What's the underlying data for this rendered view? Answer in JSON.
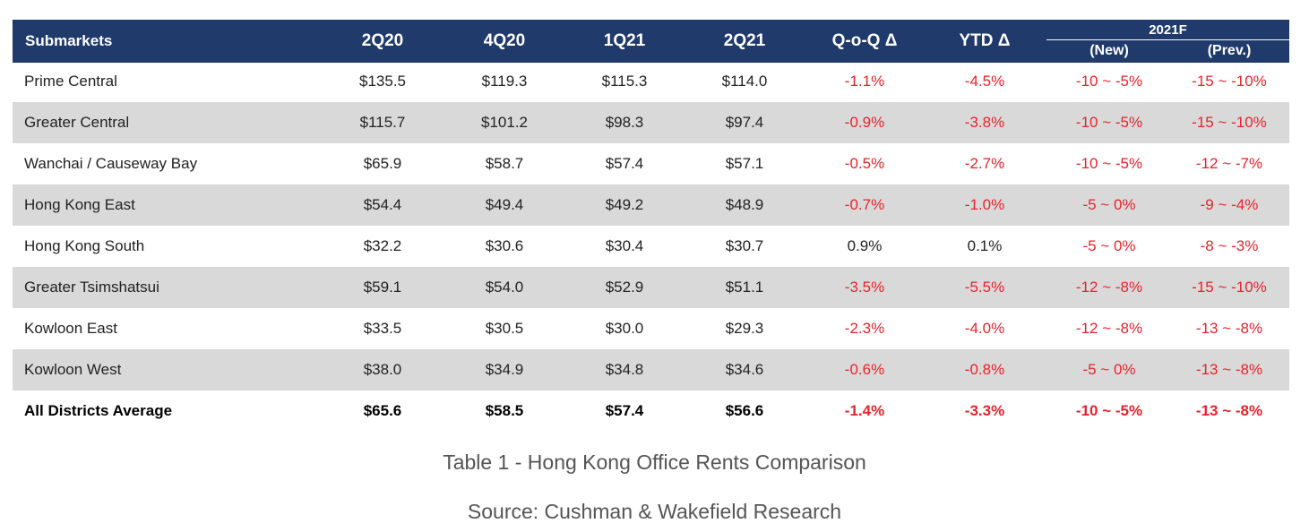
{
  "chart_data": {
    "type": "table",
    "title": "Table 1 - Hong Kong Office Rents Comparison",
    "source": "Source: Cushman & Wakefield Research",
    "headers": {
      "submarkets": "Submarkets",
      "periods": [
        "2Q20",
        "4Q20",
        "1Q21",
        "2Q21"
      ],
      "qoq": "Q-o-Q Δ",
      "ytd": "YTD Δ",
      "forecast_group": "2021F",
      "forecast_new": "(New)",
      "forecast_prev": "(Prev.)"
    },
    "rows": [
      {
        "name": "Prime Central",
        "values": [
          "$135.5",
          "$119.3",
          "$115.3",
          "$114.0"
        ],
        "qoq": "-1.1%",
        "ytd": "-4.5%",
        "f_new": "-10 ~ -5%",
        "f_prev": "-15 ~ -10%"
      },
      {
        "name": "Greater Central",
        "values": [
          "$115.7",
          "$101.2",
          "$98.3",
          "$97.4"
        ],
        "qoq": "-0.9%",
        "ytd": "-3.8%",
        "f_new": "-10 ~ -5%",
        "f_prev": "-15 ~ -10%"
      },
      {
        "name": "Wanchai / Causeway Bay",
        "values": [
          "$65.9",
          "$58.7",
          "$57.4",
          "$57.1"
        ],
        "qoq": "-0.5%",
        "ytd": "-2.7%",
        "f_new": "-10 ~ -5%",
        "f_prev": "-12 ~ -7%"
      },
      {
        "name": "Hong Kong East",
        "values": [
          "$54.4",
          "$49.4",
          "$49.2",
          "$48.9"
        ],
        "qoq": "-0.7%",
        "ytd": "-1.0%",
        "f_new": "-5 ~ 0%",
        "f_prev": "-9 ~ -4%"
      },
      {
        "name": "Hong Kong South",
        "values": [
          "$32.2",
          "$30.6",
          "$30.4",
          "$30.7"
        ],
        "qoq": "0.9%",
        "ytd": "0.1%",
        "f_new": "-5 ~ 0%",
        "f_prev": "-8 ~ -3%"
      },
      {
        "name": "Greater Tsimshatsui",
        "values": [
          "$59.1",
          "$54.0",
          "$52.9",
          "$51.1"
        ],
        "qoq": "-3.5%",
        "ytd": "-5.5%",
        "f_new": "-12 ~ -8%",
        "f_prev": "-15 ~ -10%"
      },
      {
        "name": "Kowloon East",
        "values": [
          "$33.5",
          "$30.5",
          "$30.0",
          "$29.3"
        ],
        "qoq": "-2.3%",
        "ytd": "-4.0%",
        "f_new": "-12 ~ -8%",
        "f_prev": "-13 ~ -8%"
      },
      {
        "name": "Kowloon West",
        "values": [
          "$38.0",
          "$34.9",
          "$34.8",
          "$34.6"
        ],
        "qoq": "-0.6%",
        "ytd": "-0.8%",
        "f_new": "-5 ~ 0%",
        "f_prev": "-13 ~ -8%"
      },
      {
        "name": "All Districts Average",
        "values": [
          "$65.6",
          "$58.5",
          "$57.4",
          "$56.6"
        ],
        "qoq": "-1.4%",
        "ytd": "-3.3%",
        "f_new": "-10 ~ -5%",
        "f_prev": "-13 ~ -8%"
      }
    ]
  },
  "colors": {
    "header_bg": "#1f3a6b",
    "shade_bg": "#d9d9d9",
    "negative": "#e8232a"
  }
}
